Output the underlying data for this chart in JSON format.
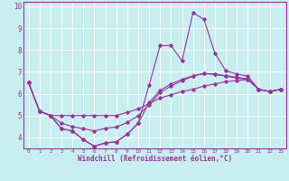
{
  "xlabel": "Windchill (Refroidissement éolien,°C)",
  "background_color": "#c8eef0",
  "grid_color": "#ffffff",
  "line_color": "#993399",
  "xlim": [
    -0.5,
    23.5
  ],
  "ylim": [
    3.5,
    10.2
  ],
  "xticks": [
    0,
    1,
    2,
    3,
    4,
    5,
    6,
    7,
    8,
    9,
    10,
    11,
    12,
    13,
    14,
    15,
    16,
    17,
    18,
    19,
    20,
    21,
    22,
    23
  ],
  "yticks": [
    4,
    5,
    6,
    7,
    8,
    9,
    10
  ],
  "series": [
    [
      6.5,
      5.2,
      5.0,
      4.4,
      4.3,
      3.9,
      3.6,
      3.75,
      3.8,
      4.15,
      4.65,
      6.4,
      8.2,
      8.2,
      7.5,
      9.7,
      9.4,
      7.85,
      7.05,
      6.9,
      6.8,
      6.2,
      6.1,
      6.2
    ],
    [
      6.5,
      5.2,
      5.0,
      5.0,
      5.0,
      5.0,
      5.0,
      5.0,
      5.0,
      5.15,
      5.3,
      5.55,
      5.8,
      5.95,
      6.1,
      6.2,
      6.35,
      6.45,
      6.55,
      6.6,
      6.65,
      6.2,
      6.1,
      6.2
    ],
    [
      6.5,
      5.2,
      5.0,
      4.65,
      4.5,
      4.4,
      4.3,
      4.42,
      4.48,
      4.68,
      5.0,
      5.5,
      6.05,
      6.35,
      6.6,
      6.8,
      6.92,
      6.9,
      6.82,
      6.75,
      6.68,
      6.2,
      6.1,
      6.2
    ],
    [
      6.5,
      5.2,
      5.0,
      4.4,
      4.3,
      3.9,
      3.6,
      3.75,
      3.8,
      4.15,
      4.65,
      5.6,
      6.15,
      6.45,
      6.65,
      6.82,
      6.92,
      6.88,
      6.8,
      6.72,
      6.65,
      6.2,
      6.1,
      6.2
    ]
  ]
}
